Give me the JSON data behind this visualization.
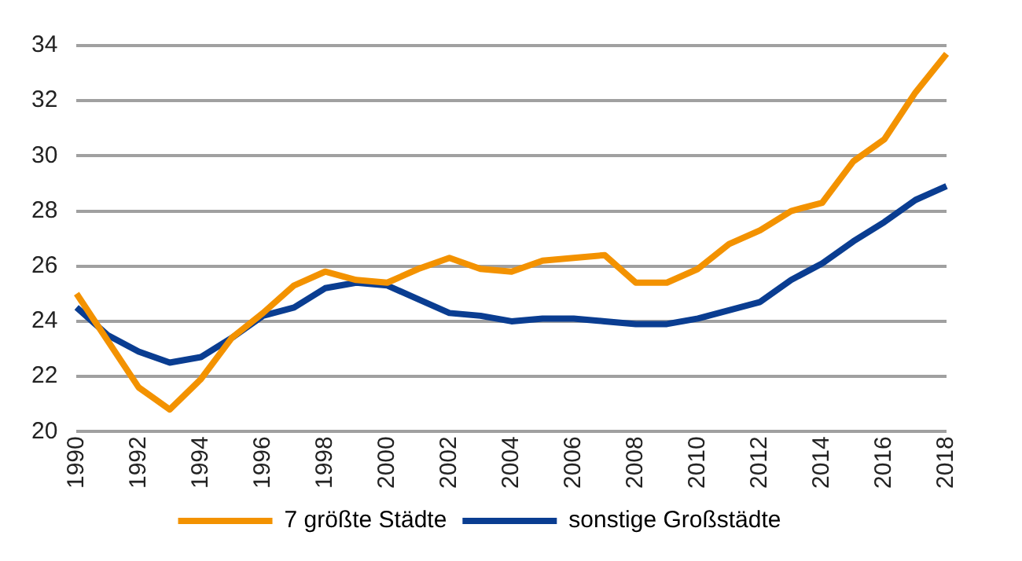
{
  "chart_data": {
    "type": "line",
    "categories": [
      "1990",
      null,
      "1992",
      null,
      "1994",
      null,
      "1996",
      null,
      "1998",
      null,
      "2000",
      null,
      "2002",
      null,
      "2004",
      null,
      "2006",
      null,
      "2008",
      null,
      "2010",
      null,
      "2012",
      null,
      "2014",
      null,
      "2016",
      null,
      "2018"
    ],
    "series": [
      {
        "name": "7 größte Städte",
        "color": "#f39200",
        "values": [
          25.0,
          23.3,
          21.6,
          20.8,
          21.9,
          23.4,
          24.3,
          25.3,
          25.8,
          25.5,
          25.4,
          25.9,
          26.3,
          25.9,
          25.8,
          26.2,
          26.3,
          26.4,
          25.4,
          25.4,
          25.9,
          26.8,
          27.3,
          28.0,
          28.3,
          29.8,
          30.6,
          32.3,
          33.7
        ]
      },
      {
        "name": "sonstige Großstädte",
        "color": "#0a3d91",
        "values": [
          24.5,
          23.5,
          22.9,
          22.5,
          22.7,
          23.4,
          24.2,
          24.5,
          25.2,
          25.4,
          25.3,
          24.8,
          24.3,
          24.2,
          24.0,
          24.1,
          24.1,
          24.0,
          23.9,
          23.9,
          24.1,
          24.4,
          24.7,
          25.5,
          26.1,
          26.9,
          27.6,
          28.4,
          28.9
        ]
      }
    ],
    "ylim": [
      20,
      34
    ],
    "yticks": [
      20,
      22,
      24,
      26,
      28,
      30,
      32,
      34
    ],
    "grid": "y",
    "legend": "bottom",
    "marker": "none",
    "line_style": "solid"
  }
}
